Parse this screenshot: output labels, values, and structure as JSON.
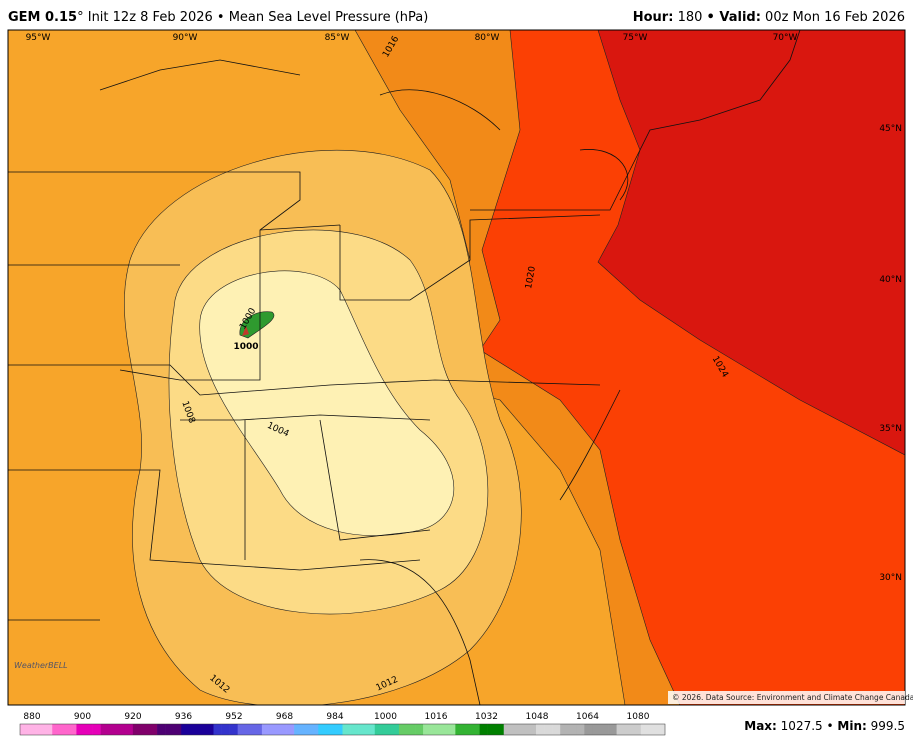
{
  "header": {
    "model": "GEM 0.15",
    "degree": "°",
    "init": "Init 12z 8 Feb 2026 • Mean Sea Level Pressure (hPa)",
    "hour_label": "Hour:",
    "hour": 180,
    "valid_label": "• Valid:",
    "valid": "00z Mon 16 Feb 2026"
  },
  "map": {
    "longitudes": [
      "95°W",
      "90°W",
      "85°W",
      "80°W",
      "75°W",
      "70°W"
    ],
    "latitudes": [
      "45°N",
      "40°N",
      "35°N",
      "30°N"
    ],
    "contour_labels": [
      "1016",
      "1020",
      "1024",
      "1008",
      "1004",
      "1000",
      "1000",
      "1012",
      "1012"
    ],
    "credit": "© 2026. Data Source: Environment and Climate Change Canada.",
    "logo": "WeatherBELL"
  },
  "colorbar": {
    "ticks": [
      880,
      900,
      920,
      936,
      952,
      968,
      984,
      1000,
      1016,
      1032,
      1048,
      1064,
      1080
    ]
  },
  "footer": {
    "max_label": "Max:",
    "max": 1027.5,
    "sep": "•",
    "min_label": "Min:",
    "min": 999.5
  }
}
